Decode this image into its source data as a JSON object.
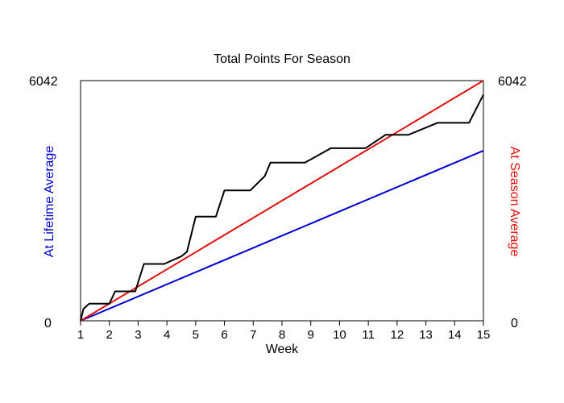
{
  "chart_data": {
    "type": "line",
    "title": "Total Points For Season",
    "xlabel": "Week",
    "ylabel_left": "At Lifetime Average",
    "ylabel_right": "At Season Average",
    "xlim": [
      1,
      15
    ],
    "ylim": [
      0,
      6042
    ],
    "x_ticks": [
      "1",
      "2",
      "3",
      "4",
      "5",
      "6",
      "7",
      "8",
      "9",
      "10",
      "11",
      "12",
      "13",
      "14",
      "15"
    ],
    "y_left_labels": {
      "min": "0",
      "max": "6042"
    },
    "y_right_labels": {
      "min": "0",
      "max": "6042"
    },
    "grid": false,
    "colors": {
      "actual": "#000000",
      "lifetime": "#0000cc",
      "season": "#e01010",
      "left_axis_label": "#0000cc",
      "right_axis_label": "#e01010"
    },
    "series": [
      {
        "key": "actual",
        "x": [
          1.0,
          1.1,
          1.3,
          2.0,
          2.2,
          2.9,
          3.2,
          3.9,
          4.5,
          4.7,
          5.0,
          5.7,
          6.0,
          6.9,
          7.4,
          7.6,
          8.8,
          9.7,
          10.9,
          11.6,
          12.4,
          13.4,
          14.5,
          15.0
        ],
        "y": [
          0,
          300,
          430,
          430,
          740,
          740,
          1430,
          1430,
          1620,
          1740,
          2620,
          2620,
          3280,
          3280,
          3640,
          3980,
          3980,
          4340,
          4340,
          4680,
          4680,
          4980,
          4980,
          5690
        ]
      },
      {
        "key": "lifetime",
        "x": [
          1,
          15
        ],
        "y": [
          0,
          4280
        ]
      },
      {
        "key": "season",
        "x": [
          1,
          15
        ],
        "y": [
          0,
          6042
        ]
      }
    ]
  }
}
